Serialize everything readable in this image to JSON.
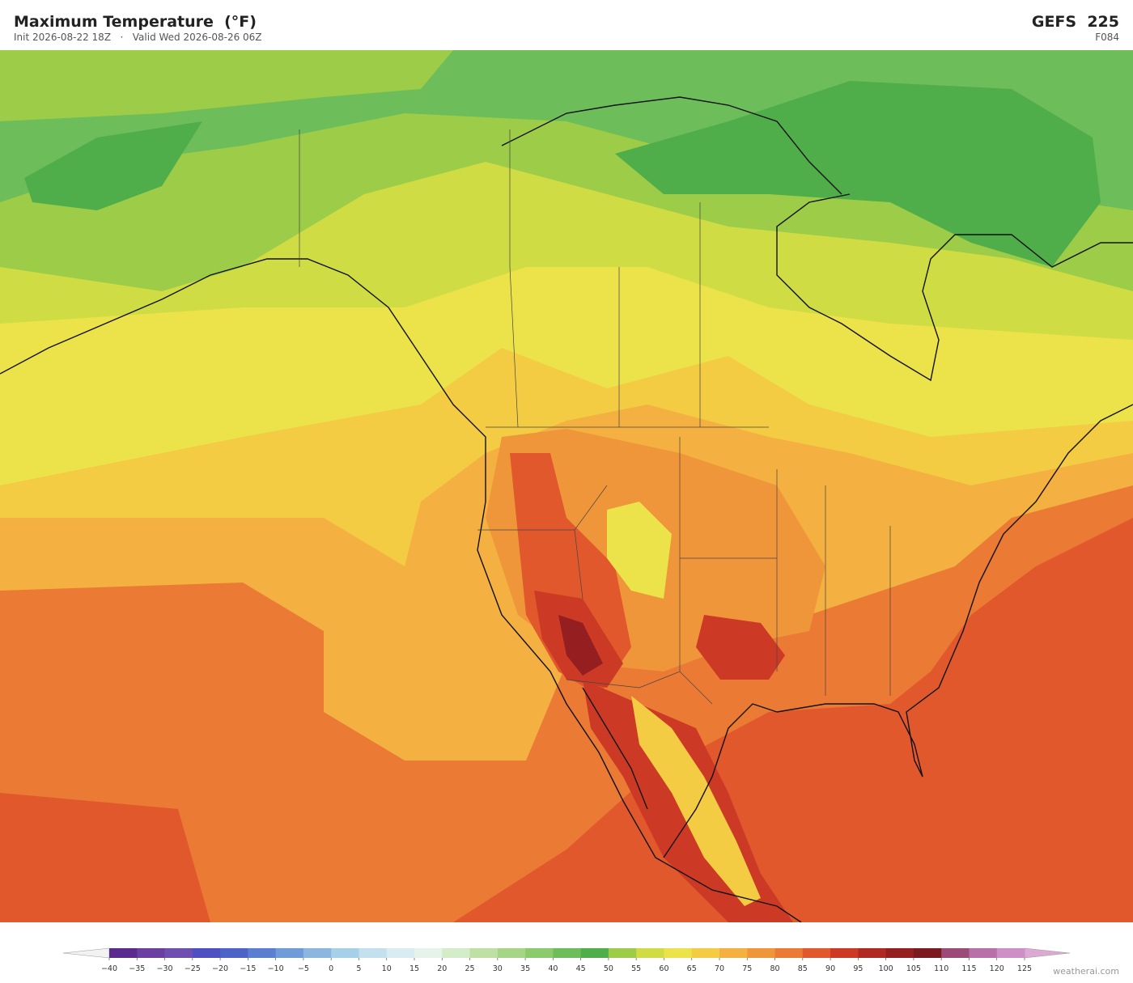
{
  "header": {
    "title": "Maximum Temperature  (°F)",
    "init": "Init 2026-08-22 18Z",
    "separator": "·",
    "valid": "Valid Wed 2026-08-26 06Z",
    "model": "GEFS  225",
    "forecast_hour": "F084"
  },
  "colorbar": {
    "ticks": [
      {
        "value": -40,
        "label": "−40"
      },
      {
        "value": -35,
        "label": "−35"
      },
      {
        "value": -30,
        "label": "−30"
      },
      {
        "value": -25,
        "label": "−25"
      },
      {
        "value": -20,
        "label": "−20"
      },
      {
        "value": -15,
        "label": "−15"
      },
      {
        "value": -10,
        "label": "−10"
      },
      {
        "value": -5,
        "label": "−5"
      },
      0,
      5,
      10,
      15,
      20,
      25,
      30,
      35,
      40,
      45,
      50,
      55,
      60,
      65,
      70,
      75,
      80,
      85,
      90,
      95,
      100,
      105,
      110,
      115,
      120,
      125
    ],
    "colors": [
      "#5b2a8e",
      "#6a3fa0",
      "#6e4fb0",
      "#4f4fc2",
      "#4e63c8",
      "#5a7fd0",
      "#6f9bd8",
      "#8ab6e0",
      "#a6cfe8",
      "#c2e0ee",
      "#d8ecf2",
      "#e6f3ea",
      "#d4ecc8",
      "#bfe0a4",
      "#a6d685",
      "#8ccb6c",
      "#6dbd5a",
      "#4fae4a",
      "#9ccc48",
      "#d0dc44",
      "#ece24a",
      "#f4cc44",
      "#f4b040",
      "#f0963a",
      "#ea7a34",
      "#e0582c",
      "#cc3a26",
      "#b02822",
      "#941e20",
      "#7a1a1e",
      "#9c4a78",
      "#b870a8",
      "#cc90c6"
    ],
    "under_color": "#f2f2f2",
    "over_color": "#dca8d4"
  },
  "footer": {
    "credit": "weatherai.com"
  }
}
